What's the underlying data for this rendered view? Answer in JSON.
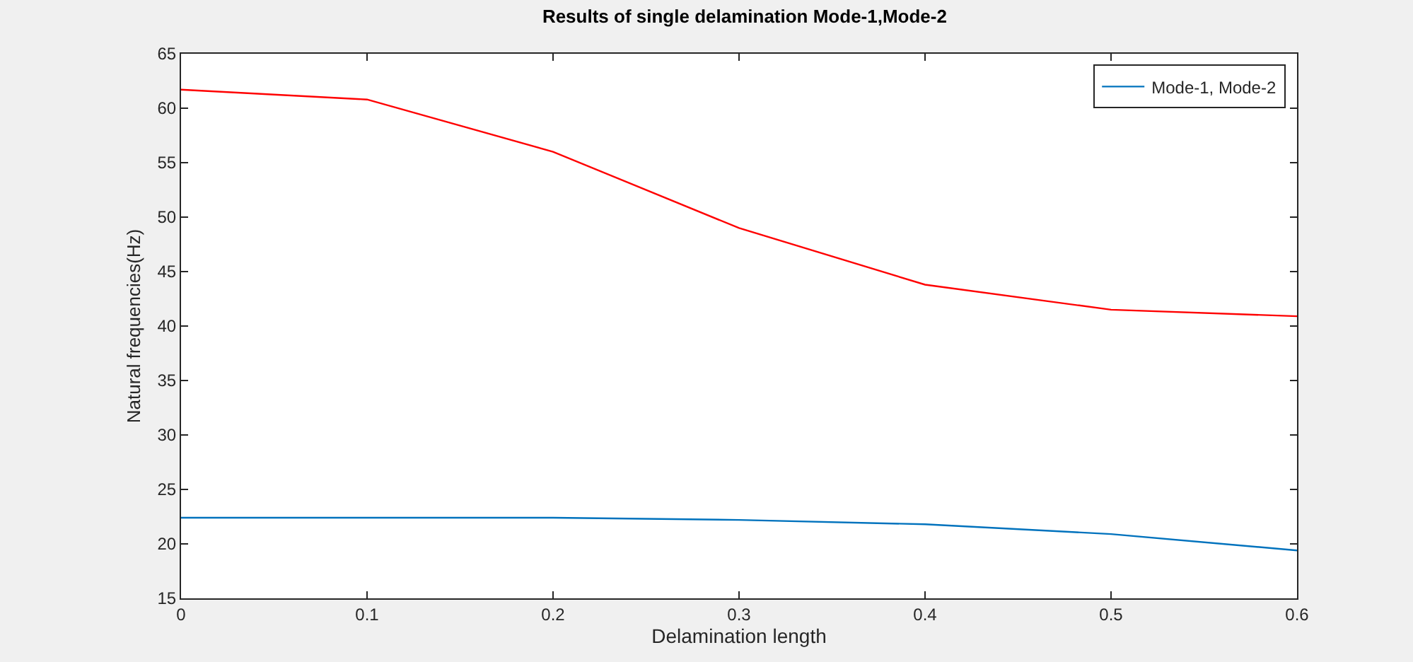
{
  "chart_data": {
    "type": "line",
    "title": "Results of single delamination Mode-1,Mode-2",
    "xlabel": "Delamination length",
    "ylabel": "Natural frequencies(Hz)",
    "x": [
      0,
      0.1,
      0.2,
      0.3,
      0.4,
      0.5,
      0.6
    ],
    "series": [
      {
        "name": "Mode-1, Mode-2",
        "color": "#0072bd",
        "values": [
          22.4,
          22.4,
          22.4,
          22.2,
          21.8,
          20.9,
          19.4
        ]
      },
      {
        "color": "#ff0000",
        "values": [
          61.7,
          60.8,
          56,
          49,
          43.8,
          41.5,
          40.9
        ]
      }
    ],
    "xlim": [
      0,
      0.6
    ],
    "xticks": [
      0,
      0.1,
      0.2,
      0.3,
      0.4,
      0.5,
      0.6
    ],
    "ylim": [
      15,
      65
    ],
    "yticks": [
      15,
      20,
      25,
      30,
      35,
      40,
      45,
      50,
      55,
      60,
      65
    ],
    "grid": false,
    "legend": "top right",
    "marker": "none",
    "line_style": "solid"
  }
}
